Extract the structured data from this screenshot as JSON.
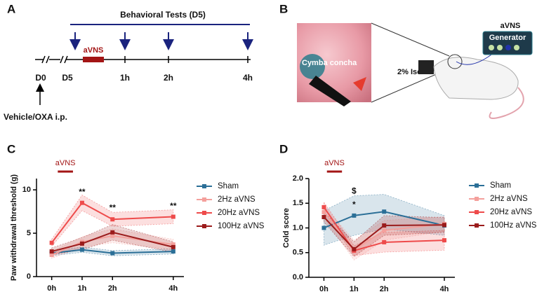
{
  "panels": {
    "A": {
      "label": "A",
      "header": "Behavioral Tests (D5)",
      "stimulus": "aVNS",
      "days": [
        "D0",
        "D5"
      ],
      "times": [
        "1h",
        "2h",
        "4h"
      ],
      "treatment": "Vehicle/OXA i.p."
    },
    "B": {
      "label": "B",
      "site": "Cymba concha",
      "anesthesia": "2% Isoflurane",
      "device_title": "aVNS",
      "device": "Generator"
    }
  },
  "chart_data": [
    {
      "type": "line",
      "panel": "C",
      "ylabel": "Paw withdrawal threshold (g)",
      "x": [
        0,
        1,
        2,
        4
      ],
      "xlim": [
        -0.5,
        4.35
      ],
      "xticks": [
        {
          "value": 0,
          "label": "0h"
        },
        {
          "value": 1,
          "label": "1h"
        },
        {
          "value": 2,
          "label": "2h"
        },
        {
          "value": 4,
          "label": "4h"
        }
      ],
      "ylim": [
        0,
        11.3
      ],
      "yticks": [
        0,
        5,
        10
      ],
      "stimulus": {
        "label": "aVNS",
        "x": [
          0.2,
          0.7
        ]
      },
      "annotations": [
        {
          "text": "**",
          "x": 1,
          "y": 9.7
        },
        {
          "text": "**",
          "x": 2,
          "y": 7.9
        },
        {
          "text": "**",
          "x": 4,
          "y": 8.1
        }
      ],
      "series": [
        {
          "name": "Sham",
          "color": "#2b6f97",
          "values": [
            2.7,
            3.1,
            2.7,
            2.9
          ],
          "errors": [
            0.3,
            0.3,
            0.3,
            0.3
          ]
        },
        {
          "name": "2Hz aVNS",
          "color": "#f4a09c",
          "values": [
            2.5,
            4.0,
            4.7,
            3.7
          ],
          "errors": [
            0.4,
            0.6,
            0.8,
            0.6
          ]
        },
        {
          "name": "20Hz aVNS",
          "color": "#ee4b4b",
          "values": [
            3.9,
            8.5,
            6.6,
            6.9
          ],
          "errors": [
            0.4,
            0.9,
            0.8,
            0.8
          ]
        },
        {
          "name": "100Hz aVNS",
          "color": "#9b1c1c",
          "values": [
            2.9,
            3.8,
            5.1,
            3.4
          ],
          "errors": [
            0.4,
            0.7,
            0.9,
            0.6
          ]
        }
      ]
    },
    {
      "type": "line",
      "panel": "D",
      "ylabel": "Cold score",
      "x": [
        0,
        1,
        2,
        4
      ],
      "xlim": [
        -0.5,
        4.35
      ],
      "xticks": [
        {
          "value": 0,
          "label": "0h"
        },
        {
          "value": 1,
          "label": "1h"
        },
        {
          "value": 2,
          "label": "2h"
        },
        {
          "value": 4,
          "label": "4h"
        }
      ],
      "ylim": [
        0,
        2
      ],
      "yticks": [
        {
          "value": 0,
          "label": "0.0"
        },
        {
          "value": 0.5,
          "label": "0.5"
        },
        {
          "value": 1,
          "label": "1.0"
        },
        {
          "value": 1.5,
          "label": "1.5"
        },
        {
          "value": 2,
          "label": "2.0"
        }
      ],
      "stimulus": {
        "label": "aVNS",
        "x": [
          0.1,
          0.6
        ]
      },
      "annotations": [
        {
          "text": "$",
          "x": 1,
          "y": 1.74
        },
        {
          "text": "*",
          "x": 1,
          "y": 1.46
        }
      ],
      "series": [
        {
          "name": "Sham",
          "color": "#2b6f97",
          "values": [
            1.0,
            1.25,
            1.33,
            1.05
          ],
          "errors": [
            0.35,
            0.4,
            0.35,
            0.2
          ]
        },
        {
          "name": "2Hz aVNS",
          "color": "#f4a09c",
          "values": [
            1.32,
            0.55,
            0.95,
            1.08
          ],
          "errors": [
            0.12,
            0.2,
            0.2,
            0.15
          ]
        },
        {
          "name": "20Hz aVNS",
          "color": "#ee4b4b",
          "values": [
            1.42,
            0.54,
            0.71,
            0.75
          ],
          "errors": [
            0.1,
            0.1,
            0.2,
            0.2
          ]
        },
        {
          "name": "100Hz aVNS",
          "color": "#9b1c1c",
          "values": [
            1.22,
            0.57,
            1.05,
            1.06
          ],
          "errors": [
            0.1,
            0.15,
            0.2,
            0.15
          ]
        }
      ]
    }
  ]
}
